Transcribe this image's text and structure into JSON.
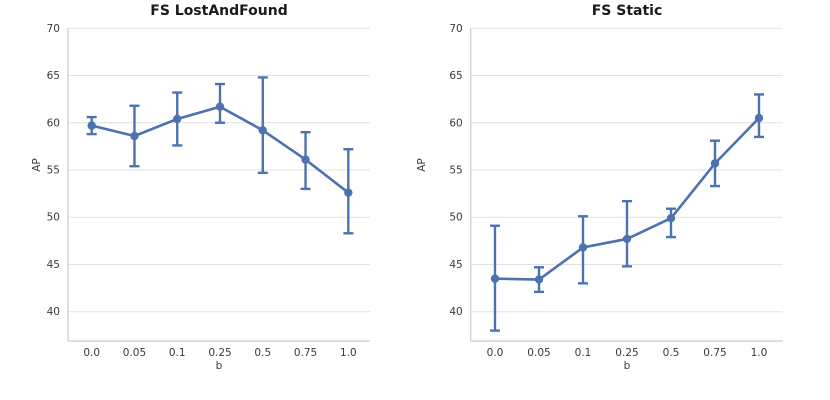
{
  "figure": {
    "background": "#ffffff",
    "accent_color": "#4c72b0",
    "grid_color": "#e2e2e2",
    "spine_color": "#cccccc",
    "tick_text_color": "#3a3a3a",
    "title_color": "#1a1a1a"
  },
  "chart_data": [
    {
      "type": "line",
      "title": "FS LostAndFound",
      "xlabel": "b",
      "ylabel": "AP",
      "categories": [
        "0.0",
        "0.05",
        "0.1",
        "0.25",
        "0.5",
        "0.75",
        "1.0"
      ],
      "yticks": [
        40,
        45,
        50,
        55,
        60,
        65,
        70
      ],
      "ylim": [
        36.9,
        70
      ],
      "grid": "horizontal",
      "legend": "none",
      "series": [
        {
          "name": "AP",
          "values": [
            59.7,
            58.6,
            60.4,
            61.7,
            59.2,
            56.1,
            52.6
          ],
          "err_low": [
            58.8,
            55.4,
            57.6,
            60.0,
            54.7,
            53.0,
            48.3
          ],
          "err_high": [
            60.6,
            61.8,
            63.2,
            64.1,
            64.8,
            59.0,
            57.2
          ]
        }
      ]
    },
    {
      "type": "line",
      "title": "FS Static",
      "xlabel": "b",
      "ylabel": "AP",
      "categories": [
        "0.0",
        "0.05",
        "0.1",
        "0.25",
        "0.5",
        "0.75",
        "1.0"
      ],
      "yticks": [
        40,
        45,
        50,
        55,
        60,
        65,
        70
      ],
      "ylim": [
        36.9,
        70
      ],
      "grid": "horizontal",
      "legend": "none",
      "series": [
        {
          "name": "AP",
          "values": [
            43.5,
            43.4,
            46.8,
            47.7,
            49.9,
            55.7,
            60.5
          ],
          "err_low": [
            38.0,
            42.1,
            43.0,
            44.8,
            47.9,
            53.3,
            58.5
          ],
          "err_high": [
            49.1,
            44.7,
            50.1,
            51.7,
            50.9,
            58.1,
            63.0
          ]
        }
      ]
    }
  ]
}
